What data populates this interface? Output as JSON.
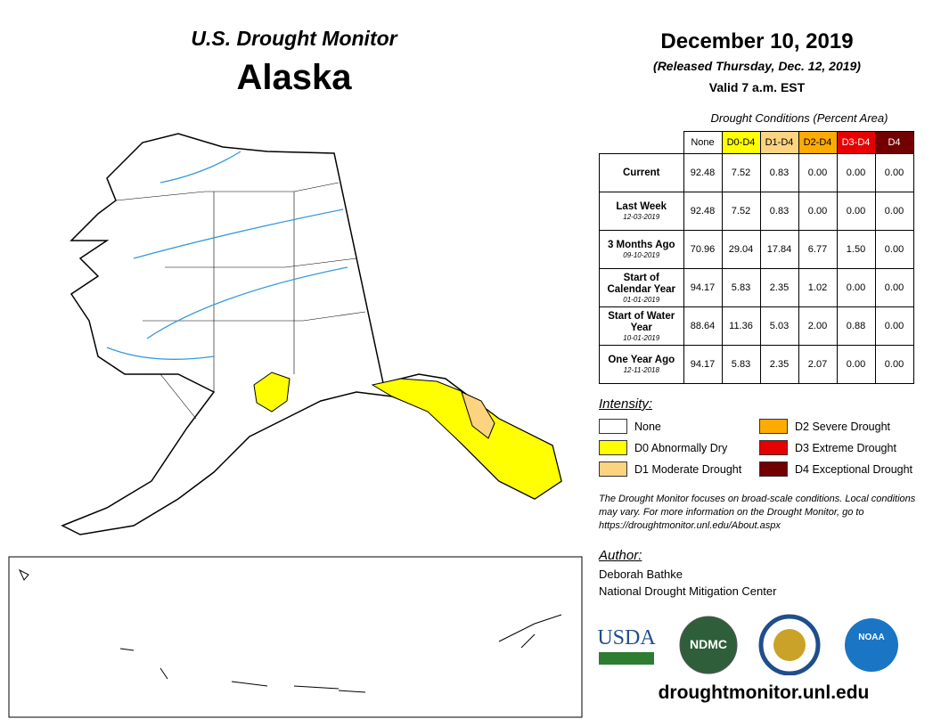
{
  "header": {
    "title": "U.S. Drought Monitor",
    "region": "Alaska"
  },
  "date": {
    "title": "December 10, 2019",
    "released": "(Released Thursday, Dec. 12, 2019)",
    "valid": "Valid 7 a.m. EST"
  },
  "table": {
    "caption": "Drought Conditions (Percent Area)",
    "columns": [
      {
        "label": "None",
        "color": "#ffffff",
        "text_color": "#000000"
      },
      {
        "label": "D0-D4",
        "color": "#ffff00",
        "text_color": "#000000"
      },
      {
        "label": "D1-D4",
        "color": "#fcd37f",
        "text_color": "#000000"
      },
      {
        "label": "D2-D4",
        "color": "#ffaa00",
        "text_color": "#000000"
      },
      {
        "label": "D3-D4",
        "color": "#e60000",
        "text_color": "#ffffff"
      },
      {
        "label": "D4",
        "color": "#730000",
        "text_color": "#ffffff"
      }
    ],
    "rows": [
      {
        "label": "Current",
        "values": [
          "92.48",
          "7.52",
          "0.83",
          "0.00",
          "0.00",
          "0.00"
        ]
      },
      {
        "label": "Last Week",
        "date": "12-03-2019",
        "values": [
          "92.48",
          "7.52",
          "0.83",
          "0.00",
          "0.00",
          "0.00"
        ]
      },
      {
        "label": "3 Months Ago",
        "date": "09-10-2019",
        "values": [
          "70.96",
          "29.04",
          "17.84",
          "6.77",
          "1.50",
          "0.00"
        ]
      },
      {
        "label": "Start of Calendar Year",
        "date": "01-01-2019",
        "values": [
          "94.17",
          "5.83",
          "2.35",
          "1.02",
          "0.00",
          "0.00"
        ]
      },
      {
        "label": "Start of Water Year",
        "date": "10-01-2019",
        "values": [
          "88.64",
          "11.36",
          "5.03",
          "2.00",
          "0.88",
          "0.00"
        ]
      },
      {
        "label": "One Year Ago",
        "date": "12-11-2018",
        "values": [
          "94.17",
          "5.83",
          "2.35",
          "2.07",
          "0.00",
          "0.00"
        ]
      }
    ]
  },
  "legend": {
    "title": "Intensity:",
    "items": [
      {
        "label": "None",
        "color": "#ffffff"
      },
      {
        "label": "D0 Abnormally Dry",
        "color": "#ffff00"
      },
      {
        "label": "D1 Moderate Drought",
        "color": "#fcd37f"
      },
      {
        "label": "D2 Severe Drought",
        "color": "#ffaa00"
      },
      {
        "label": "D3 Extreme Drought",
        "color": "#e60000"
      },
      {
        "label": "D4 Exceptional Drought",
        "color": "#730000"
      }
    ]
  },
  "note": "The Drought Monitor focuses on broad-scale conditions. Local conditions may vary. For more information on the Drought Monitor, go to https://droughtmonitor.unl.edu/About.aspx",
  "author": {
    "title": "Author:",
    "name": "Deborah Bathke",
    "organization": "National Drought Mitigation Center"
  },
  "logos": {
    "usda": "USDA",
    "ndmc": "NDMC",
    "noaa": "NOAA"
  },
  "url": "droughtmonitor.unl.edu"
}
